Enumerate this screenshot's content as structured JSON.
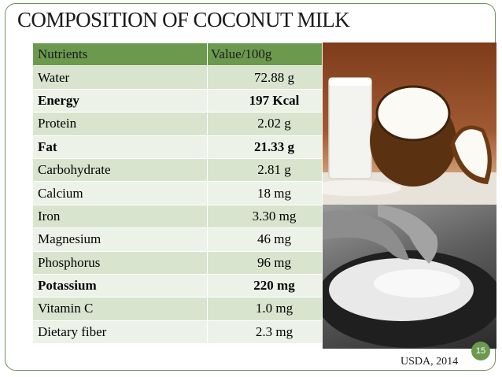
{
  "slide": {
    "title": "COMPOSITION OF COCONUT MILK",
    "source": "USDA, 2014",
    "page_number": "15"
  },
  "table": {
    "headers": [
      "Nutrients",
      "Value/100g"
    ],
    "rows": [
      {
        "name": "Water",
        "value": "72.88 g",
        "bold": false
      },
      {
        "name": "Energy",
        "value": "197 Kcal",
        "bold": true
      },
      {
        "name": "Protein",
        "value": "2.02 g",
        "bold": false
      },
      {
        "name": "Fat",
        "value": "21.33 g",
        "bold": true
      },
      {
        "name": "Carbohydrate",
        "value": "2.81 g",
        "bold": false
      },
      {
        "name": "Calcium",
        "value": "18 mg",
        "bold": false
      },
      {
        "name": "Iron",
        "value": "3.30 mg",
        "bold": false
      },
      {
        "name": "Magnesium",
        "value": "46 mg",
        "bold": false
      },
      {
        "name": "Phosphorus",
        "value": "96 mg",
        "bold": false
      },
      {
        "name": "Potassium",
        "value": "220 mg",
        "bold": true
      },
      {
        "name": "Vitamin C",
        "value": "1.0 mg",
        "bold": false
      },
      {
        "name": "Dietary fiber",
        "value": "2.3 mg",
        "bold": false
      }
    ]
  },
  "colors": {
    "header": "#6b9a4e",
    "row_dark": "#d9e4cf",
    "row_light": "#edf2e8",
    "frame": "#6f8e5a"
  }
}
